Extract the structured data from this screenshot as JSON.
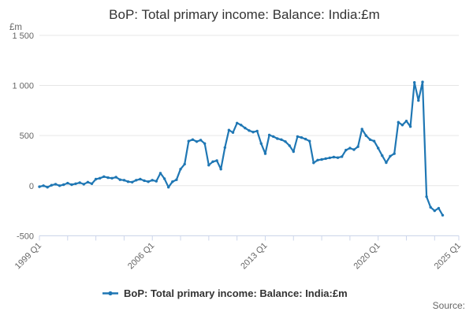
{
  "title": "BoP: Total primary income: Balance: India:£m",
  "y_axis": {
    "unit": "£m",
    "ticks": [
      {
        "label": "1 500",
        "value": 1500
      },
      {
        "label": "1 000",
        "value": 1000
      },
      {
        "label": "500",
        "value": 500
      },
      {
        "label": "0",
        "value": 0
      },
      {
        "label": "-500",
        "value": -500
      }
    ]
  },
  "x_axis": {
    "labels": [
      {
        "label": "1999 Q1",
        "q": 0
      },
      {
        "label": "2006 Q1",
        "q": 28
      },
      {
        "label": "2013 Q1",
        "q": 56
      },
      {
        "label": "2020 Q1",
        "q": 84
      },
      {
        "label": "2025 Q1",
        "q": 104
      }
    ]
  },
  "legend": {
    "label": "BoP: Total primary income: Balance: India:£m"
  },
  "source_label": "Source:",
  "colors": {
    "line": "#1f77b4",
    "grid": "#e6e6e6",
    "axis": "#ccd6eb",
    "title_text": "#333333",
    "axis_text": "#666666",
    "legend_text": "#333333",
    "source_text": "#666666",
    "background": "#ffffff"
  },
  "chart_data": {
    "type": "line",
    "title": "BoP: Total primary income: Balance: India:£m",
    "ylabel": "£m",
    "ylim": [
      -500,
      1500
    ],
    "y_tick_step": 500,
    "grid": "horizontal",
    "legend_position": "bottom",
    "marker": "circle",
    "x_start": "1999 Q1",
    "x_end": "2024 Q1",
    "frequency": "quarterly",
    "x_axis_span_quarters": 104,
    "series": [
      {
        "name": "BoP: Total primary income: Balance: India:£m",
        "values": [
          -10,
          0,
          -15,
          5,
          15,
          0,
          10,
          25,
          10,
          20,
          30,
          15,
          35,
          20,
          65,
          75,
          90,
          80,
          75,
          85,
          60,
          55,
          40,
          35,
          55,
          65,
          50,
          40,
          55,
          45,
          125,
          70,
          -15,
          40,
          60,
          165,
          215,
          445,
          460,
          440,
          455,
          420,
          205,
          240,
          250,
          165,
          380,
          555,
          530,
          625,
          605,
          575,
          550,
          535,
          545,
          420,
          320,
          505,
          490,
          470,
          460,
          440,
          400,
          340,
          490,
          480,
          465,
          445,
          228,
          255,
          262,
          270,
          278,
          285,
          280,
          290,
          355,
          375,
          360,
          390,
          565,
          500,
          460,
          445,
          375,
          300,
          230,
          295,
          320,
          633,
          605,
          645,
          590,
          1030,
          850,
          1035,
          -110,
          -215,
          -250,
          -225,
          -295
        ]
      }
    ]
  }
}
